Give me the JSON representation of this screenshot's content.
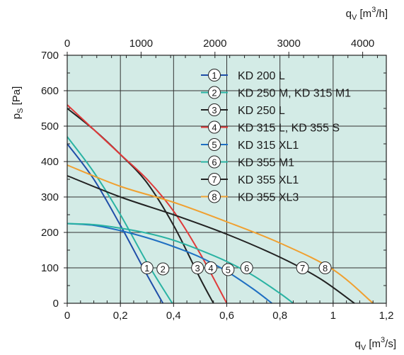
{
  "chart_data": {
    "type": "line",
    "x_unit_label_bottom": {
      "base": "q",
      "sub": "V",
      "unit_open": " [m",
      "sup": "3",
      "unit_close": "/s]"
    },
    "x_unit_label_top": {
      "base": "q",
      "sub": "V",
      "unit_open": " [m",
      "sup": "3",
      "unit_close": "/h]"
    },
    "y_unit_label": {
      "base": "p",
      "sub": "S",
      "unit": " [Pa]"
    },
    "xlim": [
      0,
      1.2
    ],
    "ylim": [
      0,
      700
    ],
    "x_ticks": [
      0,
      0.2,
      0.4,
      0.6,
      0.8,
      1.0,
      1.2
    ],
    "x_tick_labels": [
      "0",
      "0,2",
      "0,4",
      "0,6",
      "0,8",
      "1",
      "1,2"
    ],
    "y_ticks": [
      0,
      100,
      200,
      300,
      400,
      500,
      600,
      700
    ],
    "y_tick_labels": [
      "0",
      "100",
      "200",
      "300",
      "400",
      "500",
      "600",
      "700"
    ],
    "top_axis_ticks_m3h": [
      0,
      1000,
      2000,
      3000,
      4000
    ],
    "top_axis_tick_labels": [
      "0",
      "1000",
      "2000",
      "3000",
      "4000"
    ],
    "top_axis_max_m3h": 4320,
    "grid": true,
    "legend_position": "top-right",
    "background_color": "#d3ebe6",
    "series": [
      {
        "marker": "1",
        "name": "KD 200 L",
        "color": "#1f4ea8",
        "x": [
          0,
          0.1,
          0.2,
          0.3,
          0.36
        ],
        "y": [
          450,
          350,
          220,
          80,
          0
        ]
      },
      {
        "marker": "2",
        "name": "KD 250 M, KD 315 M1",
        "color": "#2ab3a3",
        "x": [
          0,
          0.1,
          0.2,
          0.3,
          0.395
        ],
        "y": [
          470,
          370,
          250,
          115,
          0
        ]
      },
      {
        "marker": "3",
        "name": "KD 250 L",
        "color": "#222222",
        "x": [
          0,
          0.1,
          0.2,
          0.3,
          0.4,
          0.5,
          0.55
        ],
        "y": [
          550,
          490,
          420,
          340,
          220,
          70,
          0
        ]
      },
      {
        "marker": "4",
        "name": "KD 315 L, KD 355 S",
        "color": "#e03a3a",
        "x": [
          0,
          0.1,
          0.2,
          0.3,
          0.4,
          0.5,
          0.6
        ],
        "y": [
          560,
          490,
          420,
          350,
          260,
          140,
          0
        ]
      },
      {
        "marker": "5",
        "name": "KD 315 XL1",
        "color": "#1f6fc2",
        "x": [
          0,
          0.1,
          0.2,
          0.3,
          0.4,
          0.5,
          0.6,
          0.7,
          0.77
        ],
        "y": [
          225,
          220,
          205,
          185,
          160,
          130,
          90,
          40,
          0
        ]
      },
      {
        "marker": "6",
        "name": "KD 355 M1",
        "color": "#2ab3a3",
        "x": [
          0,
          0.1,
          0.2,
          0.3,
          0.4,
          0.5,
          0.6,
          0.7,
          0.8,
          0.85
        ],
        "y": [
          225,
          222,
          212,
          198,
          178,
          150,
          118,
          78,
          28,
          0
        ]
      },
      {
        "marker": "7",
        "name": "KD 355 XL1",
        "color": "#222222",
        "x": [
          0,
          0.2,
          0.4,
          0.6,
          0.8,
          0.95,
          1.08
        ],
        "y": [
          360,
          300,
          250,
          195,
          130,
          70,
          0
        ]
      },
      {
        "marker": "8",
        "name": "KD 355 XL3",
        "color": "#f0a030",
        "x": [
          0,
          0.2,
          0.4,
          0.6,
          0.8,
          1.0,
          1.15
        ],
        "y": [
          390,
          330,
          285,
          230,
          170,
          95,
          0
        ]
      }
    ],
    "curve_markers": [
      {
        "marker": "1",
        "x": 0.3,
        "y": 100
      },
      {
        "marker": "2",
        "x": 0.36,
        "y": 97
      },
      {
        "marker": "3",
        "x": 0.49,
        "y": 100
      },
      {
        "marker": "4",
        "x": 0.54,
        "y": 100
      },
      {
        "marker": "5",
        "x": 0.605,
        "y": 95
      },
      {
        "marker": "6",
        "x": 0.675,
        "y": 100
      },
      {
        "marker": "7",
        "x": 0.885,
        "y": 100
      },
      {
        "marker": "8",
        "x": 0.97,
        "y": 100
      }
    ]
  }
}
